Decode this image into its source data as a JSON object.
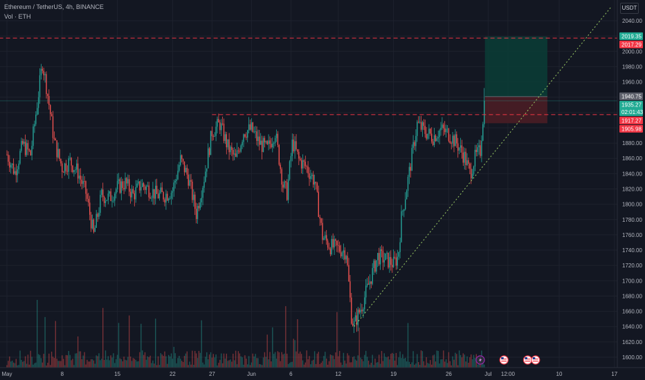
{
  "header": {
    "symbol": "Ethereum / TetherUS, 4h, BINANCE",
    "indicator": "Vol · ETH",
    "currency": "USDT"
  },
  "colors": {
    "background": "#131722",
    "up": "#26a69a",
    "down": "#ef5350",
    "resistance_line": "#f23645",
    "trendline": "#9ccc65",
    "target_zone": "#0b3b35",
    "stop_zone": "#4a1d25"
  },
  "chart_data": {
    "type": "candlestick",
    "symbol": "Ethereum / TetherUS",
    "interval": "4h",
    "exchange": "BINANCE",
    "y_axis": {
      "range": [
        1590,
        2050
      ],
      "ticks": [
        "1600.00",
        "1620.00",
        "1640.00",
        "1660.00",
        "1680.00",
        "1700.00",
        "1720.00",
        "1740.00",
        "1760.00",
        "1780.00",
        "1800.00",
        "1820.00",
        "1840.00",
        "1860.00",
        "1880.00",
        "1900.00",
        "1920.00",
        "1940.00",
        "1960.00",
        "1980.00",
        "2000.00",
        "2020.00",
        "2040.00"
      ]
    },
    "x_axis": {
      "ticks": [
        {
          "label": "May",
          "day": 1
        },
        {
          "label": "8",
          "day": 8
        },
        {
          "label": "15",
          "day": 15
        },
        {
          "label": "22",
          "day": 22
        },
        {
          "label": "27",
          "day": 27
        },
        {
          "label": "Jun",
          "day": 32
        },
        {
          "label": "6",
          "day": 37
        },
        {
          "label": "12",
          "day": 43
        },
        {
          "label": "19",
          "day": 50
        },
        {
          "label": "26",
          "day": 57
        },
        {
          "label": "Jul",
          "day": 62
        },
        {
          "label": "12:00",
          "day": 64.5
        },
        {
          "label": "10",
          "day": 71
        },
        {
          "label": "17",
          "day": 78
        }
      ]
    },
    "price_path": [
      {
        "day": 1,
        "price": 1865
      },
      {
        "day": 2,
        "price": 1842
      },
      {
        "day": 3,
        "price": 1878
      },
      {
        "day": 4,
        "price": 1865
      },
      {
        "day": 5.5,
        "price": 1985
      },
      {
        "day": 6,
        "price": 1955
      },
      {
        "day": 7,
        "price": 1882
      },
      {
        "day": 8,
        "price": 1848
      },
      {
        "day": 9,
        "price": 1856
      },
      {
        "day": 10,
        "price": 1842
      },
      {
        "day": 11,
        "price": 1815
      },
      {
        "day": 12,
        "price": 1760
      },
      {
        "day": 13,
        "price": 1812
      },
      {
        "day": 14,
        "price": 1808
      },
      {
        "day": 15,
        "price": 1822
      },
      {
        "day": 16,
        "price": 1828
      },
      {
        "day": 17,
        "price": 1812
      },
      {
        "day": 18,
        "price": 1826
      },
      {
        "day": 19,
        "price": 1820
      },
      {
        "day": 20,
        "price": 1812
      },
      {
        "day": 21,
        "price": 1812
      },
      {
        "day": 22,
        "price": 1818
      },
      {
        "day": 23,
        "price": 1858
      },
      {
        "day": 24,
        "price": 1835
      },
      {
        "day": 25,
        "price": 1788
      },
      {
        "day": 26,
        "price": 1835
      },
      {
        "day": 27,
        "price": 1895
      },
      {
        "day": 28,
        "price": 1905
      },
      {
        "day": 29,
        "price": 1875
      },
      {
        "day": 30,
        "price": 1858
      },
      {
        "day": 31,
        "price": 1895
      },
      {
        "day": 32,
        "price": 1898
      },
      {
        "day": 33,
        "price": 1880
      },
      {
        "day": 34,
        "price": 1872
      },
      {
        "day": 35,
        "price": 1895
      },
      {
        "day": 36,
        "price": 1825
      },
      {
        "day": 36.5,
        "price": 1815
      },
      {
        "day": 37.2,
        "price": 1882
      },
      {
        "day": 38,
        "price": 1858
      },
      {
        "day": 39,
        "price": 1848
      },
      {
        "day": 40,
        "price": 1830
      },
      {
        "day": 41,
        "price": 1758
      },
      {
        "day": 42,
        "price": 1745
      },
      {
        "day": 43,
        "price": 1742
      },
      {
        "day": 44,
        "price": 1738
      },
      {
        "day": 44.7,
        "price": 1650
      },
      {
        "day": 45,
        "price": 1642
      },
      {
        "day": 46,
        "price": 1668
      },
      {
        "day": 47,
        "price": 1700
      },
      {
        "day": 48,
        "price": 1732
      },
      {
        "day": 49,
        "price": 1728
      },
      {
        "day": 50,
        "price": 1722
      },
      {
        "day": 50.6,
        "price": 1732
      },
      {
        "day": 51,
        "price": 1782
      },
      {
        "day": 52,
        "price": 1842
      },
      {
        "day": 53,
        "price": 1905
      },
      {
        "day": 54,
        "price": 1895
      },
      {
        "day": 55,
        "price": 1888
      },
      {
        "day": 56,
        "price": 1898
      },
      {
        "day": 57,
        "price": 1892
      },
      {
        "day": 58,
        "price": 1880
      },
      {
        "day": 59,
        "price": 1862
      },
      {
        "day": 59.7,
        "price": 1840
      },
      {
        "day": 60.3,
        "price": 1860
      },
      {
        "day": 61,
        "price": 1870
      },
      {
        "day": 61.5,
        "price": 1935
      }
    ],
    "volume_scale": [
      0,
      1
    ],
    "horizontal_lines": [
      {
        "price": 2017.29,
        "style": "dashed",
        "start_day": 0
      },
      {
        "price": 1917.27,
        "style": "dashed",
        "start_day": 27
      }
    ],
    "trendline": {
      "from": {
        "day": 45,
        "price": 1640
      },
      "to": {
        "day": 77.5,
        "price": 2057
      },
      "style": "dotted"
    },
    "position": {
      "type": "long",
      "start_day": 61.5,
      "end_day": 69.5,
      "entry": 1940.75,
      "target": 2019.35,
      "stop": 1905.98
    },
    "price_labels": [
      {
        "price": 2019.35,
        "text": "2019.35",
        "color": "#22ab94"
      },
      {
        "price": 2017.29,
        "text": "2017.29",
        "color": "#f23645"
      },
      {
        "price": 1940.75,
        "text": "1940.75",
        "color": "#5d606b"
      },
      {
        "price": 1935.27,
        "text": "1935.27",
        "color": "#22ab94",
        "subtext": "02:01:43"
      },
      {
        "price": 1917.27,
        "text": "1917.27",
        "color": "#f23645"
      },
      {
        "price": 1905.98,
        "text": "1905.98",
        "color": "#f23645"
      }
    ],
    "events": [
      {
        "day": 61,
        "icon": "lightning-icon"
      },
      {
        "day": 64,
        "icon": "us-flag-icon"
      },
      {
        "day": 67,
        "icon": "us-flag-icon"
      },
      {
        "day": 68,
        "icon": "us-flag-icon"
      }
    ]
  }
}
